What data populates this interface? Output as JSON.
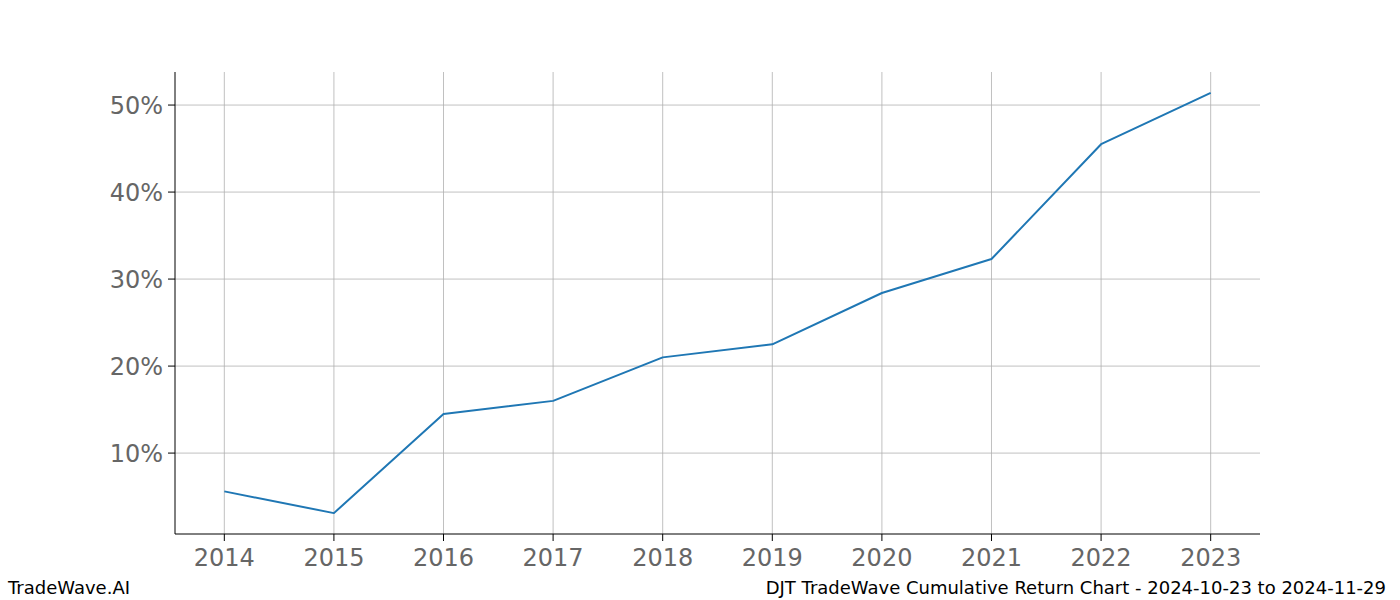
{
  "chart_data": {
    "type": "line",
    "title": "DJT TradeWave Cumulative Return Chart - 2024-10-23 to 2024-11-29",
    "source": "TradeWave.AI",
    "x": [
      2014,
      2015,
      2016,
      2017,
      2018,
      2019,
      2020,
      2021,
      2022,
      2023
    ],
    "values": [
      5.6,
      3.1,
      14.5,
      16.0,
      21.0,
      22.5,
      28.4,
      32.3,
      45.5,
      51.4
    ],
    "color": "#1f77b4",
    "xlim": [
      2013.55,
      2023.45
    ],
    "xticks": [
      2014,
      2015,
      2016,
      2017,
      2018,
      2019,
      2020,
      2021,
      2022,
      2023
    ],
    "ylim": [
      0.7,
      53.8
    ],
    "yticks": [
      {
        "value": 10,
        "label": "10%"
      },
      {
        "value": 20,
        "label": "20%"
      },
      {
        "value": 30,
        "label": "30%"
      },
      {
        "value": 40,
        "label": "40%"
      },
      {
        "value": 50,
        "label": "50%"
      }
    ],
    "grid": true
  }
}
